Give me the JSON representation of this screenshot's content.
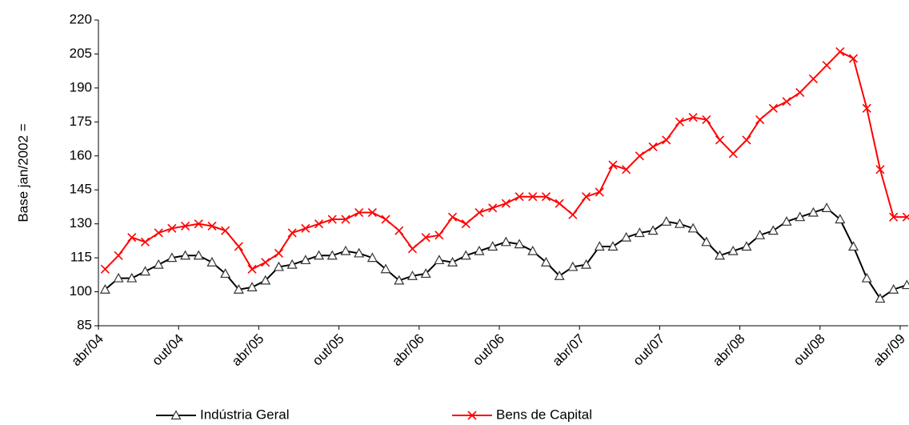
{
  "chart_data": {
    "type": "line",
    "y_label": "Base jan/2002 =",
    "categories": [
      "abr/04",
      null,
      null,
      null,
      null,
      null,
      "out/04",
      null,
      null,
      null,
      null,
      null,
      "abr/05",
      null,
      null,
      null,
      null,
      null,
      "out/05",
      null,
      null,
      null,
      null,
      null,
      "abr/06",
      null,
      null,
      null,
      null,
      null,
      "out/06",
      null,
      null,
      null,
      null,
      null,
      "abr/07",
      null,
      null,
      null,
      null,
      null,
      "out/07",
      null,
      null,
      null,
      null,
      null,
      "abr/08",
      null,
      null,
      null,
      null,
      null,
      "out/08",
      null,
      null,
      null,
      null,
      null,
      "abr/09"
    ],
    "series": [
      {
        "name": "Indústria Geral",
        "color": "#000000",
        "marker": "triangle",
        "values": [
          101,
          106,
          106,
          109,
          112,
          115,
          116,
          116,
          113,
          108,
          101,
          102,
          105,
          111,
          112,
          114,
          116,
          116,
          118,
          117,
          115,
          110,
          105,
          107,
          108,
          114,
          113,
          116,
          118,
          120,
          122,
          121,
          118,
          113,
          107,
          111,
          112,
          120,
          120,
          124,
          126,
          127,
          131,
          130,
          128,
          122,
          116,
          118,
          120,
          125,
          127,
          131,
          133,
          135,
          137,
          132,
          120,
          106,
          97,
          101,
          103
        ]
      },
      {
        "name": "Bens de Capital",
        "color": "#ff0000",
        "marker": "x",
        "values": [
          110,
          116,
          124,
          122,
          126,
          128,
          129,
          130,
          129,
          127,
          120,
          110,
          113,
          117,
          126,
          128,
          130,
          132,
          132,
          135,
          135,
          132,
          127,
          119,
          124,
          125,
          133,
          130,
          135,
          137,
          139,
          142,
          142,
          142,
          139,
          134,
          142,
          144,
          156,
          154,
          160,
          164,
          167,
          175,
          177,
          176,
          167,
          161,
          167,
          176,
          181,
          184,
          188,
          194,
          200,
          206,
          203,
          181,
          154,
          133,
          133
        ]
      }
    ],
    "ylim": [
      85,
      220
    ],
    "yticks": [
      85,
      100,
      115,
      130,
      145,
      160,
      175,
      190,
      205,
      220
    ],
    "grid": false,
    "legend": "bottom"
  }
}
